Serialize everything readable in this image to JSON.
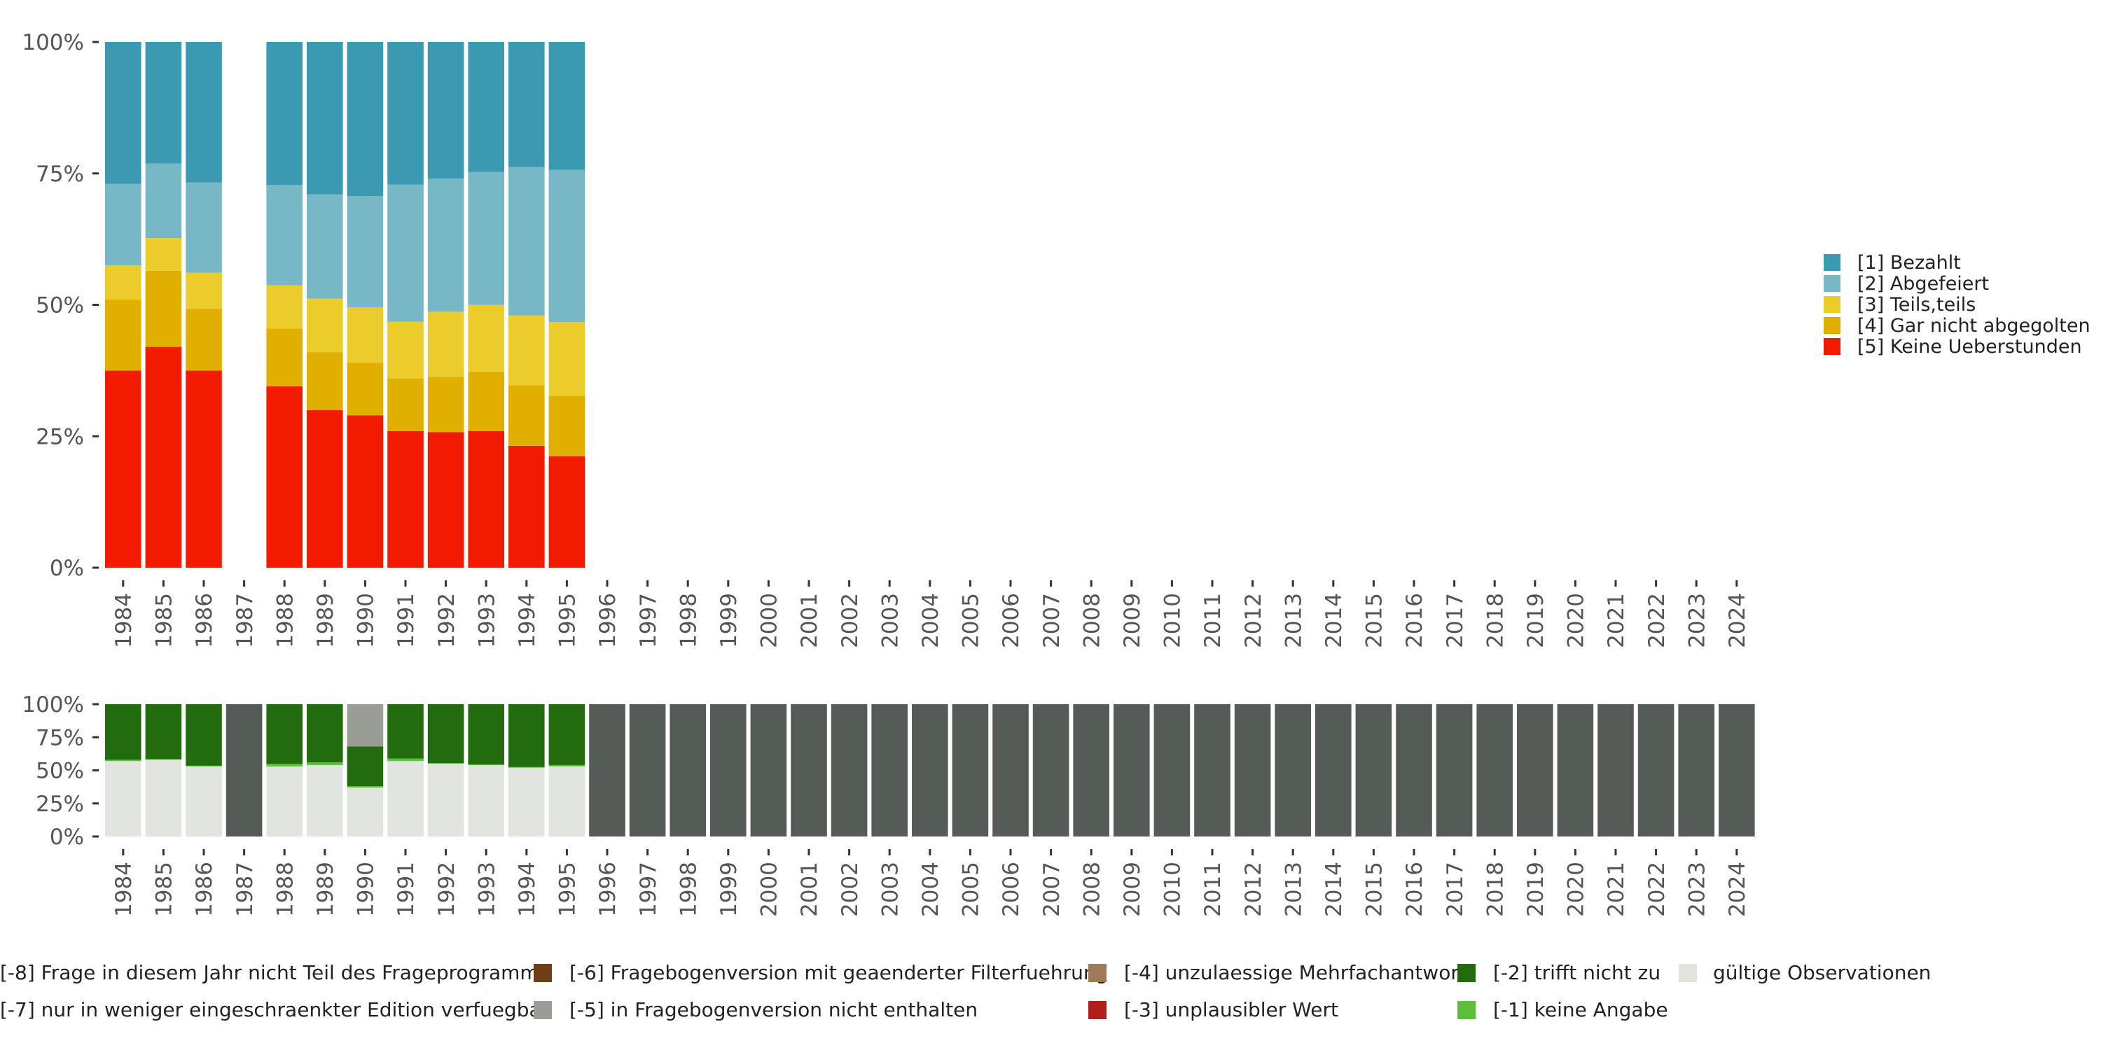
{
  "chart_data": [
    {
      "type": "bar",
      "stacked": true,
      "percent": true,
      "yticks": [
        "0%",
        "25%",
        "50%",
        "75%",
        "100%"
      ],
      "ylim": [
        0,
        100
      ],
      "categories": [
        "1984",
        "1985",
        "1986",
        "1987",
        "1988",
        "1989",
        "1990",
        "1991",
        "1992",
        "1993",
        "1994",
        "1995",
        "1996",
        "1997",
        "1998",
        "1999",
        "2000",
        "2001",
        "2002",
        "2003",
        "2004",
        "2005",
        "2006",
        "2007",
        "2008",
        "2009",
        "2010",
        "2011",
        "2012",
        "2013",
        "2014",
        "2015",
        "2016",
        "2017",
        "2018",
        "2019",
        "2020",
        "2021",
        "2022",
        "2023",
        "2024"
      ],
      "series": [
        {
          "name": "[5] Keine Ueberstunden",
          "color": "#F21A00",
          "values": [
            37.5,
            42.0,
            37.5,
            null,
            34.5,
            30.0,
            29.0,
            26.0,
            25.8,
            26.0,
            23.2,
            21.2,
            null,
            null,
            null,
            null,
            null,
            null,
            null,
            null,
            null,
            null,
            null,
            null,
            null,
            null,
            null,
            null,
            null,
            null,
            null,
            null,
            null,
            null,
            null,
            null,
            null,
            null,
            null,
            null,
            null
          ]
        },
        {
          "name": "[4] Gar nicht abgegolten",
          "color": "#E1AF00",
          "values": [
            13.5,
            14.5,
            11.8,
            null,
            11.0,
            11.0,
            10.0,
            10.0,
            10.5,
            11.3,
            11.5,
            11.5,
            null,
            null,
            null,
            null,
            null,
            null,
            null,
            null,
            null,
            null,
            null,
            null,
            null,
            null,
            null,
            null,
            null,
            null,
            null,
            null,
            null,
            null,
            null,
            null,
            null,
            null,
            null,
            null,
            null
          ]
        },
        {
          "name": "[3] Teils,teils",
          "color": "#EBCC2A",
          "values": [
            6.5,
            6.2,
            6.8,
            null,
            8.2,
            10.2,
            10.5,
            10.8,
            12.4,
            12.7,
            13.3,
            14.0,
            null,
            null,
            null,
            null,
            null,
            null,
            null,
            null,
            null,
            null,
            null,
            null,
            null,
            null,
            null,
            null,
            null,
            null,
            null,
            null,
            null,
            null,
            null,
            null,
            null,
            null,
            null,
            null,
            null
          ]
        },
        {
          "name": "[2] Abgefeiert",
          "color": "#78B7C5",
          "values": [
            15.5,
            14.2,
            17.2,
            null,
            19.1,
            19.8,
            21.2,
            26.1,
            25.3,
            25.3,
            28.2,
            29.0,
            null,
            null,
            null,
            null,
            null,
            null,
            null,
            null,
            null,
            null,
            null,
            null,
            null,
            null,
            null,
            null,
            null,
            null,
            null,
            null,
            null,
            null,
            null,
            null,
            null,
            null,
            null,
            null,
            null
          ]
        },
        {
          "name": "[1] Bezahlt",
          "color": "#3B9AB2",
          "values": [
            27.0,
            23.1,
            26.7,
            null,
            27.2,
            29.0,
            29.3,
            27.1,
            26.0,
            24.7,
            23.8,
            24.3,
            null,
            null,
            null,
            null,
            null,
            null,
            null,
            null,
            null,
            null,
            null,
            null,
            null,
            null,
            null,
            null,
            null,
            null,
            null,
            null,
            null,
            null,
            null,
            null,
            null,
            null,
            null,
            null,
            null
          ]
        }
      ],
      "legend": [
        "[1] Bezahlt",
        "[2] Abgefeiert",
        "[3] Teils,teils",
        "[4] Gar nicht abgegolten",
        "[5] Keine Ueberstunden"
      ],
      "legend_position": "right"
    },
    {
      "type": "bar",
      "stacked": true,
      "percent": true,
      "yticks": [
        "0%",
        "25%",
        "50%",
        "75%",
        "100%"
      ],
      "ylim": [
        0,
        100
      ],
      "categories": [
        "1984",
        "1985",
        "1986",
        "1987",
        "1988",
        "1989",
        "1990",
        "1991",
        "1992",
        "1993",
        "1994",
        "1995",
        "1996",
        "1997",
        "1998",
        "1999",
        "2000",
        "2001",
        "2002",
        "2003",
        "2004",
        "2005",
        "2006",
        "2007",
        "2008",
        "2009",
        "2010",
        "2011",
        "2012",
        "2013",
        "2014",
        "2015",
        "2016",
        "2017",
        "2018",
        "2019",
        "2020",
        "2021",
        "2022",
        "2023",
        "2024"
      ],
      "series": [
        {
          "name": "gültige Observationen",
          "color": "#E1E4DF",
          "values": [
            57,
            58,
            53,
            0,
            53,
            54,
            37,
            57,
            55,
            54,
            52,
            53,
            0,
            0,
            0,
            0,
            0,
            0,
            0,
            0,
            0,
            0,
            0,
            0,
            0,
            0,
            0,
            0,
            0,
            0,
            0,
            0,
            0,
            0,
            0,
            0,
            0,
            0,
            0,
            0,
            0
          ]
        },
        {
          "name": "[-1] keine Angabe",
          "color": "#5BBF3A",
          "values": [
            1,
            0.5,
            0.5,
            0,
            2,
            2,
            1,
            2,
            0.5,
            0.5,
            0.5,
            1,
            0,
            0,
            0,
            0,
            0,
            0,
            0,
            0,
            0,
            0,
            0,
            0,
            0,
            0,
            0,
            0,
            0,
            0,
            0,
            0,
            0,
            0,
            0,
            0,
            0,
            0,
            0,
            0,
            0
          ]
        },
        {
          "name": "[-2] trifft nicht zu",
          "color": "#236B0F",
          "values": [
            42,
            41.5,
            46.5,
            0,
            45,
            44,
            30,
            41,
            44.5,
            45.5,
            47.5,
            46,
            0,
            0,
            0,
            0,
            0,
            0,
            0,
            0,
            0,
            0,
            0,
            0,
            0,
            0,
            0,
            0,
            0,
            0,
            0,
            0,
            0,
            0,
            0,
            0,
            0,
            0,
            0,
            0,
            0
          ]
        },
        {
          "name": "[-5] in Fragebogenversion nicht enthalten",
          "color": "#9A9C96",
          "values": [
            0,
            0,
            0,
            0,
            0,
            0,
            32,
            0,
            0,
            0,
            0,
            0,
            0,
            0,
            0,
            0,
            0,
            0,
            0,
            0,
            0,
            0,
            0,
            0,
            0,
            0,
            0,
            0,
            0,
            0,
            0,
            0,
            0,
            0,
            0,
            0,
            0,
            0,
            0,
            0,
            0
          ]
        },
        {
          "name": "[-8] Frage in diesem Jahr nicht Teil des Frageprogramms",
          "color": "#555B56",
          "values": [
            0,
            0,
            0,
            100,
            0,
            0,
            0,
            0,
            0,
            0,
            0,
            0,
            100,
            100,
            100,
            100,
            100,
            100,
            100,
            100,
            100,
            100,
            100,
            100,
            100,
            100,
            100,
            100,
            100,
            100,
            100,
            100,
            100,
            100,
            100,
            100,
            100,
            100,
            100,
            100,
            100
          ]
        }
      ],
      "legend": [
        {
          "label": "[-8] Frage in diesem Jahr nicht Teil des Frageprogramms",
          "color": "#555B56"
        },
        {
          "label": "[-7] nur in weniger eingeschraenkter Edition verfuegbar",
          "color": "#555B56"
        },
        {
          "label": "[-6] Fragebogenversion mit geaenderter Filterfuehrung",
          "color": "#6E3E18"
        },
        {
          "label": "[-5] in Fragebogenversion nicht enthalten",
          "color": "#9A9C96"
        },
        {
          "label": "[-4] unzulaessige Mehrfachantwort",
          "color": "#9E7A57"
        },
        {
          "label": "[-3] unplausibler Wert",
          "color": "#B01F1B"
        },
        {
          "label": "[-2] trifft nicht zu",
          "color": "#236B0F"
        },
        {
          "label": "[-1] keine Angabe",
          "color": "#5BBF3A"
        },
        {
          "label": "gültige Observationen",
          "color": "#E1E4DF"
        }
      ],
      "legend_position": "bottom"
    }
  ]
}
